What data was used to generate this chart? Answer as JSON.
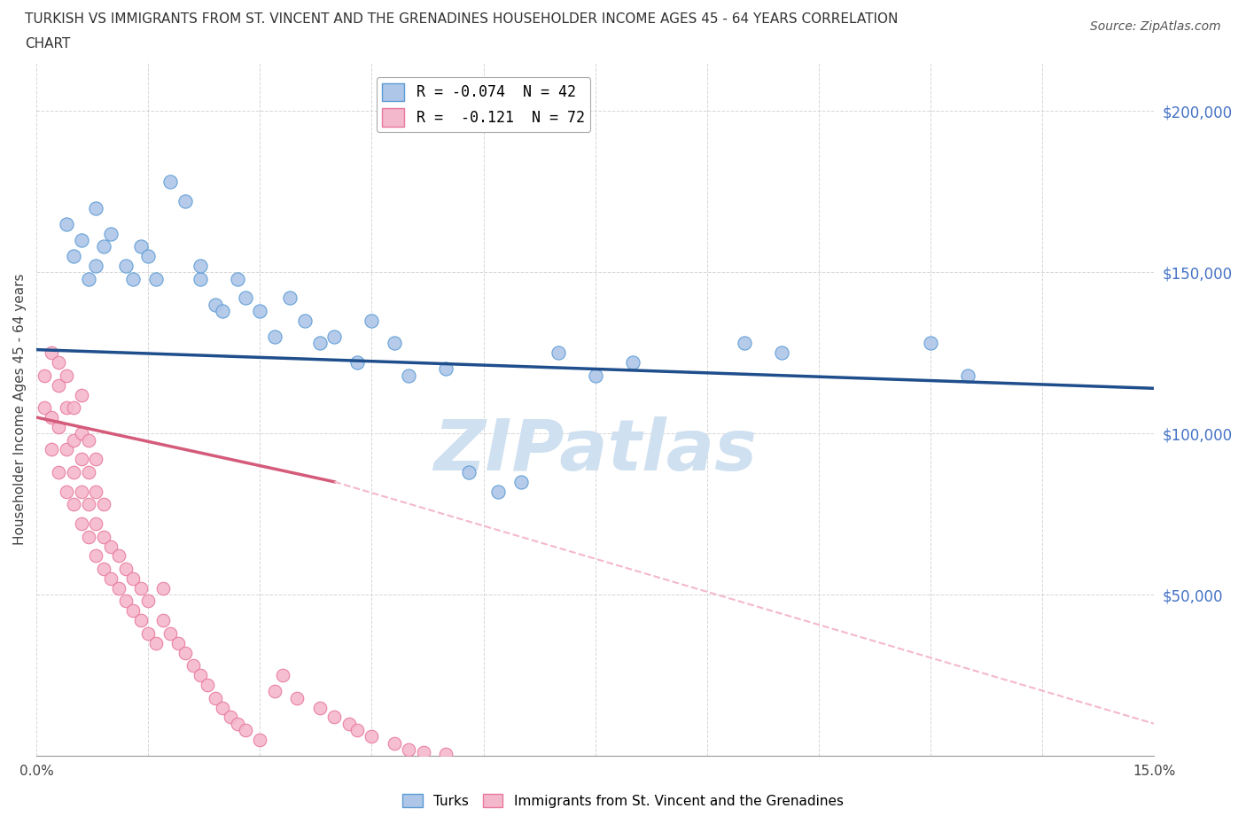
{
  "title_line1": "TURKISH VS IMMIGRANTS FROM ST. VINCENT AND THE GRENADINES HOUSEHOLDER INCOME AGES 45 - 64 YEARS CORRELATION",
  "title_line2": "CHART",
  "source_text": "Source: ZipAtlas.com",
  "ylabel": "Householder Income Ages 45 - 64 years",
  "xlim": [
    0.0,
    0.15
  ],
  "ylim": [
    0,
    215000
  ],
  "yticks": [
    0,
    50000,
    100000,
    150000,
    200000
  ],
  "ytick_labels": [
    "",
    "$50,000",
    "$100,000",
    "$150,000",
    "$200,000"
  ],
  "xticks": [
    0.0,
    0.015,
    0.03,
    0.045,
    0.06,
    0.075,
    0.09,
    0.105,
    0.12,
    0.135,
    0.15
  ],
  "xtick_labels": [
    "0.0%",
    "",
    "",
    "",
    "",
    "",
    "",
    "",
    "",
    "",
    "15.0%"
  ],
  "legend_r1_label": "R = -0.074  N = 42",
  "legend_r2_label": "R =  -0.121  N = 72",
  "turks_color": "#aec6e8",
  "turks_edge_color": "#5b9bd5",
  "svg_color": "#f4b8cc",
  "svg_edge_color": "#e8789a",
  "trend_turks_color": "#1f4e8c",
  "trend_svg_solid_color": "#d45b7a",
  "trend_svg_dashed_color": "#f4b8cc",
  "watermark_text": "ZIPatlas",
  "watermark_color": "#cfe0f0",
  "background_color": "#ffffff",
  "turks_x": [
    0.004,
    0.005,
    0.006,
    0.007,
    0.008,
    0.008,
    0.009,
    0.01,
    0.012,
    0.013,
    0.014,
    0.015,
    0.016,
    0.018,
    0.02,
    0.022,
    0.022,
    0.024,
    0.025,
    0.027,
    0.028,
    0.03,
    0.032,
    0.034,
    0.036,
    0.038,
    0.04,
    0.043,
    0.045,
    0.048,
    0.05,
    0.055,
    0.058,
    0.062,
    0.065,
    0.07,
    0.075,
    0.08,
    0.095,
    0.1,
    0.12,
    0.125
  ],
  "turks_y": [
    165000,
    155000,
    160000,
    148000,
    152000,
    170000,
    158000,
    162000,
    152000,
    148000,
    158000,
    155000,
    148000,
    178000,
    172000,
    148000,
    152000,
    140000,
    138000,
    148000,
    142000,
    138000,
    130000,
    142000,
    135000,
    128000,
    130000,
    122000,
    135000,
    128000,
    118000,
    120000,
    88000,
    82000,
    85000,
    125000,
    118000,
    122000,
    128000,
    125000,
    128000,
    118000
  ],
  "svg_x": [
    0.001,
    0.001,
    0.002,
    0.002,
    0.002,
    0.003,
    0.003,
    0.003,
    0.003,
    0.004,
    0.004,
    0.004,
    0.004,
    0.005,
    0.005,
    0.005,
    0.005,
    0.006,
    0.006,
    0.006,
    0.006,
    0.006,
    0.007,
    0.007,
    0.007,
    0.007,
    0.008,
    0.008,
    0.008,
    0.008,
    0.009,
    0.009,
    0.009,
    0.01,
    0.01,
    0.011,
    0.011,
    0.012,
    0.012,
    0.013,
    0.013,
    0.014,
    0.014,
    0.015,
    0.015,
    0.016,
    0.017,
    0.017,
    0.018,
    0.019,
    0.02,
    0.021,
    0.022,
    0.023,
    0.024,
    0.025,
    0.026,
    0.027,
    0.028,
    0.03,
    0.032,
    0.033,
    0.035,
    0.038,
    0.04,
    0.042,
    0.043,
    0.045,
    0.048,
    0.05,
    0.052,
    0.055
  ],
  "svg_y": [
    108000,
    118000,
    95000,
    105000,
    125000,
    88000,
    102000,
    115000,
    122000,
    82000,
    95000,
    108000,
    118000,
    78000,
    88000,
    98000,
    108000,
    72000,
    82000,
    92000,
    100000,
    112000,
    68000,
    78000,
    88000,
    98000,
    62000,
    72000,
    82000,
    92000,
    58000,
    68000,
    78000,
    55000,
    65000,
    52000,
    62000,
    48000,
    58000,
    45000,
    55000,
    42000,
    52000,
    38000,
    48000,
    35000,
    42000,
    52000,
    38000,
    35000,
    32000,
    28000,
    25000,
    22000,
    18000,
    15000,
    12000,
    10000,
    8000,
    5000,
    20000,
    25000,
    18000,
    15000,
    12000,
    10000,
    8000,
    6000,
    4000,
    2000,
    1000,
    500
  ],
  "trend_turks_x0": 0.0,
  "trend_turks_y0": 126000,
  "trend_turks_x1": 0.15,
  "trend_turks_y1": 114000,
  "trend_svg_solid_x0": 0.0,
  "trend_svg_solid_y0": 105000,
  "trend_svg_solid_x1": 0.04,
  "trend_svg_solid_y1": 85000,
  "trend_svg_dash_x0": 0.04,
  "trend_svg_dash_y0": 85000,
  "trend_svg_dash_x1": 0.15,
  "trend_svg_dash_y1": 10000
}
